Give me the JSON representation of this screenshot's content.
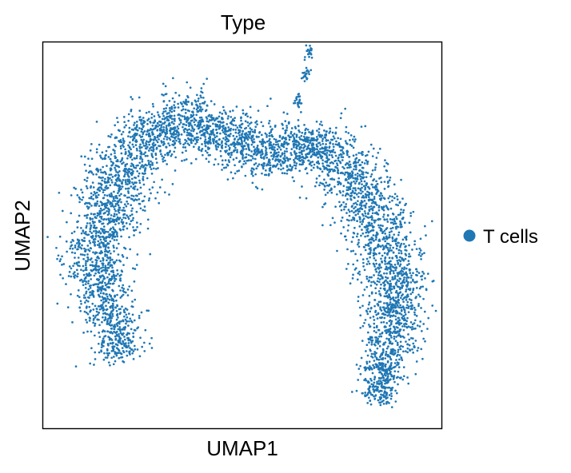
{
  "chart_data": {
    "type": "scatter",
    "title": "Type",
    "xlabel": "UMAP1",
    "ylabel": "UMAP2",
    "xlim": [
      0,
      100
    ],
    "ylim": [
      0,
      100
    ],
    "grid": false,
    "ticks": false,
    "legend": {
      "placement": "right",
      "entries": [
        {
          "label": "T cells",
          "color": "#1f77b4"
        }
      ]
    },
    "series": [
      {
        "name": "T cells",
        "color": "#1f77b4",
        "point_count": 5000,
        "density_shape": [
          {
            "x": 20,
            "y": 18,
            "spread": 6
          },
          {
            "x": 13,
            "y": 37,
            "spread": 7
          },
          {
            "x": 15,
            "y": 55,
            "spread": 8
          },
          {
            "x": 22,
            "y": 70,
            "spread": 8
          },
          {
            "x": 30,
            "y": 80,
            "spread": 7
          },
          {
            "x": 42,
            "y": 79,
            "spread": 7
          },
          {
            "x": 50,
            "y": 73,
            "spread": 6
          },
          {
            "x": 58,
            "y": 70,
            "spread": 7
          },
          {
            "x": 67,
            "y": 75,
            "spread": 6
          },
          {
            "x": 75,
            "y": 69,
            "spread": 8
          },
          {
            "x": 82,
            "y": 58,
            "spread": 8
          },
          {
            "x": 89,
            "y": 42,
            "spread": 8
          },
          {
            "x": 88,
            "y": 25,
            "spread": 6
          },
          {
            "x": 84,
            "y": 7,
            "spread": 4
          }
        ],
        "spike": [
          {
            "x": 64,
            "y": 85
          },
          {
            "x": 66,
            "y": 92
          },
          {
            "x": 67,
            "y": 98
          }
        ]
      }
    ]
  }
}
